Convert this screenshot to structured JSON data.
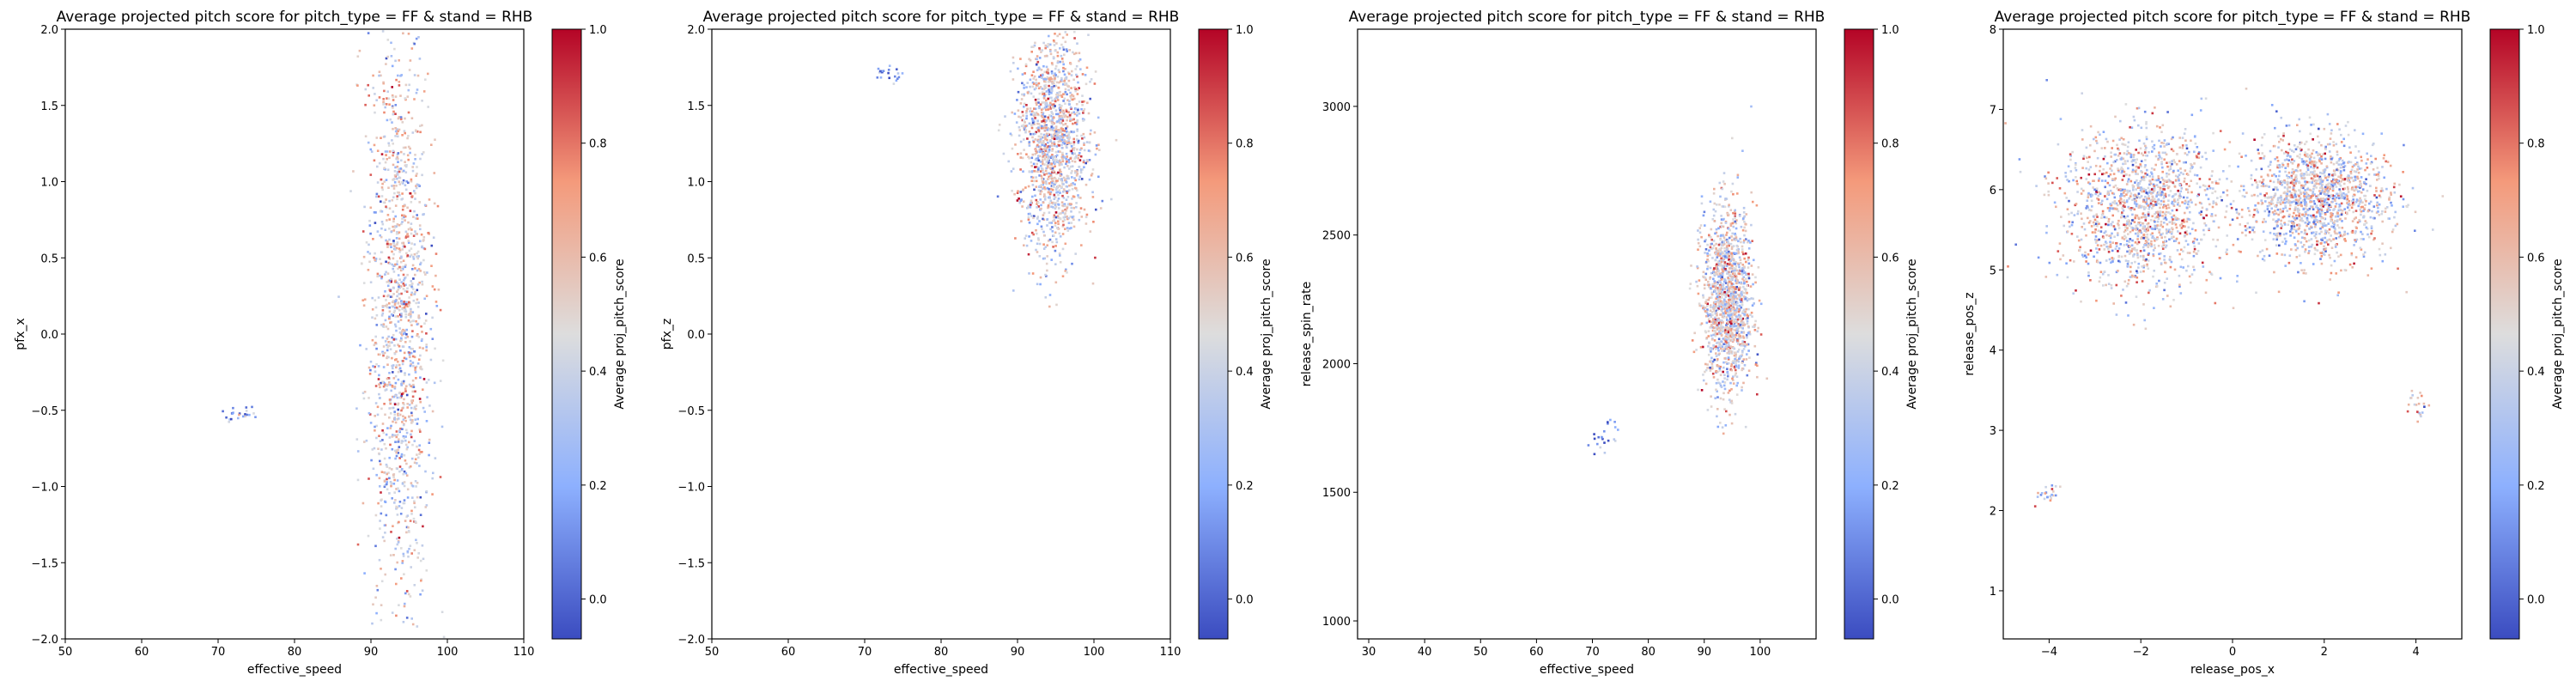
{
  "chart_data": [
    {
      "type": "heatmap",
      "title": "Average projected pitch score for pitch_type = FF & stand = RHB",
      "xlabel": "effective_speed",
      "ylabel": "pfx_x",
      "xlim": [
        50,
        110
      ],
      "ylim": [
        -2.0,
        2.0
      ],
      "xticks": [
        "50",
        "60",
        "70",
        "80",
        "90",
        "100",
        "110"
      ],
      "yticks": [
        "-2.0",
        "-1.5",
        "-1.0",
        "-0.5",
        "0.0",
        "0.5",
        "1.0",
        "1.5",
        "2.0"
      ],
      "colorbar_label": "Average proj_pitch_score",
      "colorbar_range": [
        -0.07,
        1.0
      ],
      "colorbar_ticks": [
        "0.0",
        "0.2",
        "0.4",
        "0.6",
        "0.8",
        "1.0"
      ],
      "grid": false,
      "clusters": [
        {
          "x_center": 93.5,
          "y_center": 0.1,
          "x_spread": 3.8,
          "y_spread": 1.75,
          "mean_score": 0.5
        },
        {
          "x_center": 72.5,
          "y_center": -0.52,
          "x_spread": 2.0,
          "y_spread": 0.05,
          "mean_score": 0.2
        }
      ]
    },
    {
      "type": "heatmap",
      "title": "Average projected pitch score for pitch_type = FF & stand = RHB",
      "xlabel": "effective_speed",
      "ylabel": "pfx_z",
      "xlim": [
        50,
        110
      ],
      "ylim": [
        -2.0,
        2.0
      ],
      "xticks": [
        "50",
        "60",
        "70",
        "80",
        "90",
        "100",
        "110"
      ],
      "yticks": [
        "-2.0",
        "-1.5",
        "-1.0",
        "-0.5",
        "0.0",
        "0.5",
        "1.0",
        "1.5",
        "2.0"
      ],
      "colorbar_label": "Average proj_pitch_score",
      "colorbar_range": [
        -0.07,
        1.0
      ],
      "colorbar_ticks": [
        "0.0",
        "0.2",
        "0.4",
        "0.6",
        "0.8",
        "1.0"
      ],
      "grid": false,
      "clusters": [
        {
          "x_center": 94.5,
          "y_center": 1.25,
          "x_spread": 4.2,
          "y_spread": 0.65,
          "mean_score": 0.5
        },
        {
          "x_center": 72.5,
          "y_center": 1.72,
          "x_spread": 2.0,
          "y_spread": 0.05,
          "mean_score": 0.15
        }
      ]
    },
    {
      "type": "heatmap",
      "title": "Average projected pitch score for pitch_type = FF & stand = RHB",
      "xlabel": "effective_speed",
      "ylabel": "release_spin_rate",
      "xlim": [
        28,
        110
      ],
      "ylim": [
        930,
        3300
      ],
      "xticks": [
        "30",
        "40",
        "50",
        "60",
        "70",
        "80",
        "90",
        "100"
      ],
      "yticks": [
        "1000",
        "1500",
        "2000",
        "2500",
        "3000"
      ],
      "colorbar_label": "Average proj_pitch_score",
      "colorbar_range": [
        -0.07,
        1.0
      ],
      "colorbar_ticks": [
        "0.0",
        "0.2",
        "0.4",
        "0.6",
        "0.8",
        "1.0"
      ],
      "grid": false,
      "clusters": [
        {
          "x_center": 94.0,
          "y_center": 2250,
          "x_spread": 4.0,
          "y_spread": 320,
          "mean_score": 0.5
        },
        {
          "x_center": 72.0,
          "y_center": 1730,
          "x_spread": 2.5,
          "y_spread": 60,
          "mean_score": 0.15
        }
      ]
    },
    {
      "type": "heatmap",
      "title": "Average projected pitch score for pitch_type = FF & stand = RHB",
      "xlabel": "release_pos_x",
      "ylabel": "release_pos_z",
      "xlim": [
        -5.0,
        5.0
      ],
      "ylim": [
        0.4,
        8.0
      ],
      "xticks": [
        "-4",
        "-2",
        "0",
        "2",
        "4"
      ],
      "yticks": [
        "1",
        "2",
        "3",
        "4",
        "5",
        "6",
        "7",
        "8"
      ],
      "colorbar_label": "Average proj_pitch_score",
      "colorbar_range": [
        -0.07,
        1.0
      ],
      "colorbar_ticks": [
        "0.0",
        "0.2",
        "0.4",
        "0.6",
        "0.8",
        "1.0"
      ],
      "grid": false,
      "clusters": [
        {
          "x_center": -2.0,
          "y_center": 5.8,
          "x_spread": 1.6,
          "y_spread": 0.9,
          "mean_score": 0.5
        },
        {
          "x_center": 1.8,
          "y_center": 5.9,
          "x_spread": 1.4,
          "y_spread": 0.7,
          "mean_score": 0.5
        },
        {
          "x_center": -4.1,
          "y_center": 2.2,
          "x_spread": 0.3,
          "y_spread": 0.12,
          "mean_score": 0.45
        },
        {
          "x_center": 4.0,
          "y_center": 3.3,
          "x_spread": 0.2,
          "y_spread": 0.2,
          "mean_score": 0.55
        }
      ]
    }
  ]
}
